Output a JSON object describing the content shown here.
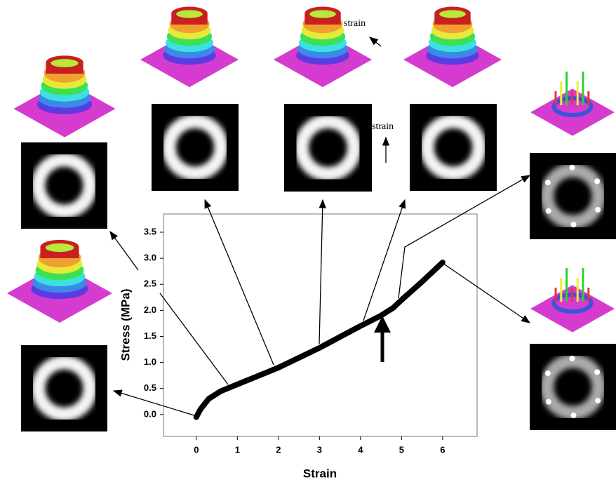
{
  "chart_data": {
    "type": "line",
    "x_label": "Strain",
    "y_label": "Stress (MPa)",
    "annotations": [
      "strain",
      "strain"
    ],
    "series": [
      {
        "color": "#000000",
        "x": [
          0,
          0.1,
          0.3,
          0.6,
          1,
          2,
          3,
          4,
          4.5,
          4.8,
          5,
          5.5,
          6
        ],
        "values": [
          -0.05,
          0.1,
          0.3,
          0.45,
          0.58,
          0.9,
          1.28,
          1.7,
          1.9,
          2.05,
          2.2,
          2.55,
          2.92
        ]
      }
    ],
    "xlim": [
      -0.8,
      6.84
    ],
    "xticks": [
      0,
      1,
      2,
      3,
      4,
      5,
      6
    ],
    "ylim": [
      -0.42,
      3.85
    ],
    "yticks": [
      {
        "value": 0,
        "label": "0.0"
      },
      0.5,
      {
        "value": 1,
        "label": "1.0"
      },
      1.5,
      {
        "value": 2,
        "label": "2.0"
      },
      2.5,
      {
        "value": 3,
        "label": "3.0"
      },
      3.5
    ]
  }
}
